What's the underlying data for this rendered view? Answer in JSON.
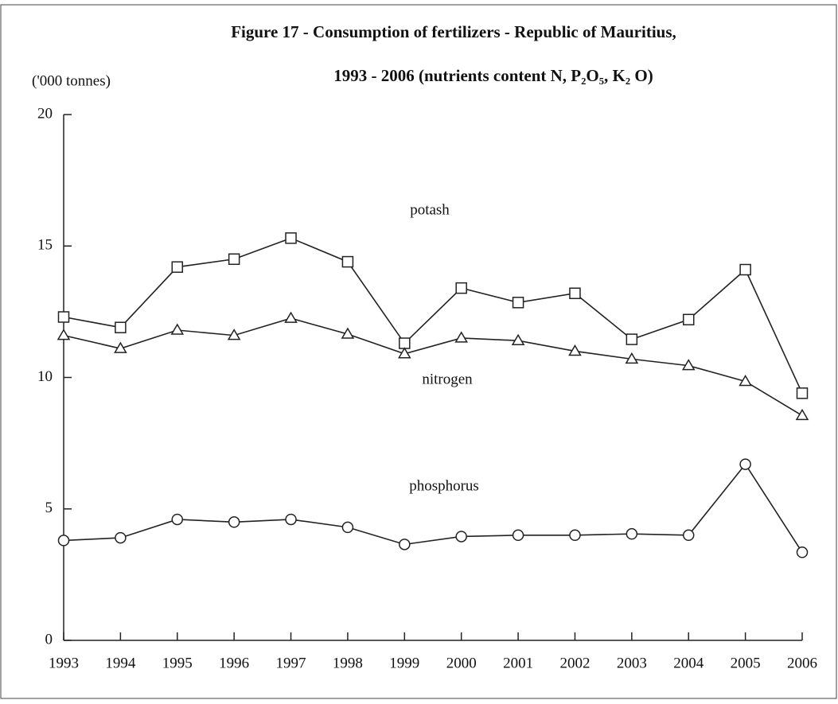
{
  "chart_data": {
    "type": "line",
    "title": "Figure 17 - Consumption of fertilizers - Republic of Mauritius,",
    "subtitle": "1993 - 2006   (nutrients content N, P₂O₅, K₂ O)",
    "y_label": "('000 tonnes)",
    "x": [
      1993,
      1994,
      1995,
      1996,
      1997,
      1998,
      1999,
      2000,
      2001,
      2002,
      2003,
      2004,
      2005,
      2006
    ],
    "xlim": [
      1993,
      2006
    ],
    "xticks": [
      1993,
      1994,
      1995,
      1996,
      1997,
      1998,
      1999,
      2000,
      2001,
      2002,
      2003,
      2004,
      2005,
      2006
    ],
    "ylim": [
      0,
      20
    ],
    "yticks": [
      0,
      5,
      10,
      15,
      20
    ],
    "series": [
      {
        "name": "potash",
        "color": "#222222",
        "marker": "square",
        "values": [
          12.3,
          11.9,
          14.2,
          14.5,
          15.3,
          14.4,
          11.3,
          13.4,
          12.85,
          13.2,
          11.45,
          12.2,
          14.1,
          9.4
        ]
      },
      {
        "name": "nitrogen",
        "color": "#222222",
        "marker": "triangle",
        "values": [
          11.6,
          11.1,
          11.8,
          11.6,
          12.25,
          11.65,
          10.9,
          11.5,
          11.4,
          11.0,
          10.7,
          10.45,
          9.85,
          8.55
        ]
      },
      {
        "name": "phosphorus",
        "color": "#222222",
        "marker": "circle",
        "values": [
          3.8,
          3.9,
          4.6,
          4.5,
          4.6,
          4.3,
          3.65,
          3.95,
          4.0,
          4.0,
          4.05,
          4.0,
          6.7,
          3.35
        ]
      }
    ]
  }
}
